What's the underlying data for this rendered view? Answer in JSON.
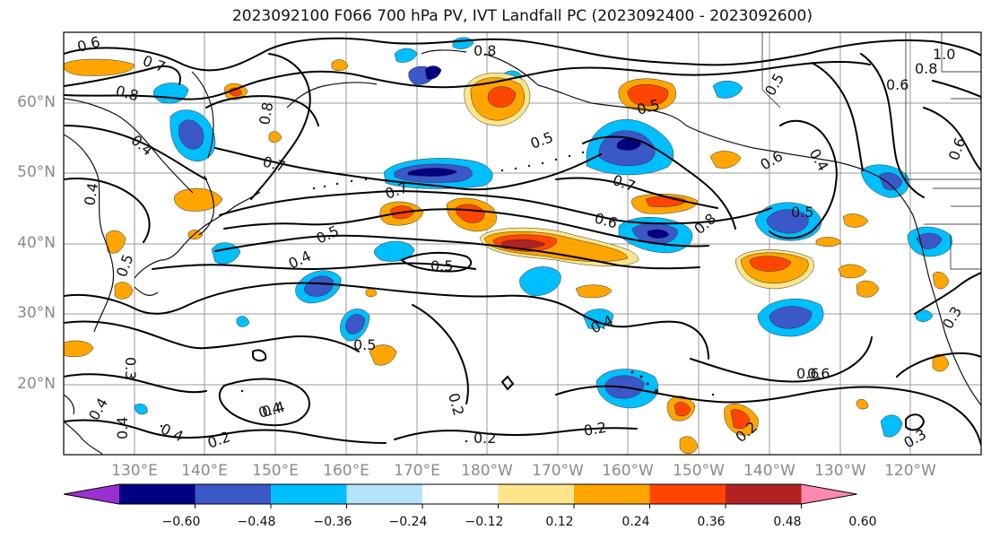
{
  "title": "2023092100 F066 700 hPa PV, IVT Landfall PC (2023092400 - 2023092600)",
  "lat_labels": [
    "60°N",
    "50°N",
    "40°N",
    "30°N",
    "20°N"
  ],
  "lon_labels": [
    "130°E",
    "140°E",
    "150°E",
    "160°E",
    "170°E",
    "180°W",
    "170°W",
    "160°W",
    "150°W",
    "140°W",
    "130°W",
    "120°W"
  ],
  "colorbar": {
    "ticks": [
      "−0.60",
      "−0.48",
      "−0.36",
      "−0.24",
      "−0.12",
      "0.12",
      "0.24",
      "0.36",
      "0.48",
      "0.60"
    ],
    "colors": [
      "#9b30d0",
      "#000080",
      "#3a58c8",
      "#00bfff",
      "#b4e4fb",
      "#ffffff",
      "#fde68a",
      "#ffa500",
      "#ff4500",
      "#b22222",
      "#ff88b0"
    ]
  },
  "contour_labels": [
    "0.6",
    "0.7",
    "0.8",
    "0.4",
    "0.8",
    "0.7",
    "0.4",
    "0.5",
    "0.4",
    "0.7",
    "0.5",
    "0.8",
    "1.0",
    "0.8",
    "0.6",
    "0.5",
    "0.5",
    "0.4",
    "0.7",
    "0.6",
    "0.6",
    "0.5",
    "0.6",
    "0.4",
    "0.5",
    "0.4",
    "0.5",
    "0.8",
    "0.6",
    "0.4",
    "0.3",
    "0.5",
    "0.4",
    "0.4",
    "0.2",
    "0.2",
    "0.2",
    "0.2",
    "0.2",
    "0.6",
    "0.3",
    "0.3",
    "0.4"
  ]
}
